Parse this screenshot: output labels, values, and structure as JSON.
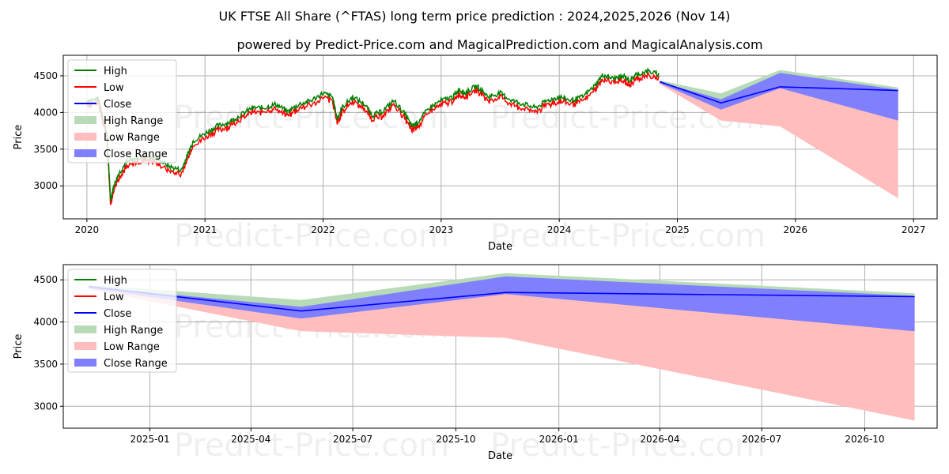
{
  "title": "UK FTSE All Share (^FTAS) long term price prediction : 2024,2025,2026 (Nov 14)",
  "subtitle": "powered by Predict-Price.com and MagicalPrediction.com and MagicalAnalysis.com",
  "watermark": "Predict-Price.com",
  "colors": {
    "high": "#008000",
    "low": "#ff0000",
    "close": "#0000ff",
    "high_range": "#b6dbb6",
    "low_range": "#ffbdbd",
    "close_range": "#8080ff",
    "grid": "#b0b0b0"
  },
  "legend": [
    "High",
    "Low",
    "Close",
    "High Range",
    "Low Range",
    "Close Range"
  ],
  "chart_data": [
    {
      "type": "line",
      "title": "Historical and predicted prices",
      "xlabel": "Date",
      "ylabel": "Price",
      "xlim": [
        2019.8,
        2027.2
      ],
      "ylim": [
        2550,
        4780
      ],
      "xticks": [
        2020,
        2021,
        2022,
        2023,
        2024,
        2025,
        2026,
        2027
      ],
      "xtick_labels": [
        "2020",
        "2021",
        "2022",
        "2023",
        "2024",
        "2025",
        "2026",
        "2027"
      ],
      "yticks": [
        3000,
        3500,
        4000,
        4500
      ],
      "grid": true,
      "legend_position": "top-left",
      "history": {
        "x": [
          2020.0,
          2020.1,
          2020.17,
          2020.2,
          2020.23,
          2020.27,
          2020.33,
          2020.4,
          2020.5,
          2020.6,
          2020.7,
          2020.8,
          2020.85,
          2020.9,
          2021.0,
          2021.1,
          2021.2,
          2021.3,
          2021.4,
          2021.5,
          2021.6,
          2021.7,
          2021.8,
          2021.9,
          2022.0,
          2022.08,
          2022.12,
          2022.16,
          2022.25,
          2022.35,
          2022.42,
          2022.5,
          2022.6,
          2022.7,
          2022.75,
          2022.8,
          2022.9,
          2023.0,
          2023.1,
          2023.15,
          2023.2,
          2023.3,
          2023.4,
          2023.5,
          2023.6,
          2023.7,
          2023.8,
          2023.9,
          2024.0,
          2024.1,
          2024.2,
          2024.3,
          2024.37,
          2024.45,
          2024.55,
          2024.6,
          2024.65,
          2024.75,
          2024.85
        ],
        "close": [
          4150,
          4170,
          3700,
          2800,
          3000,
          3150,
          3300,
          3350,
          3400,
          3350,
          3250,
          3200,
          3400,
          3600,
          3700,
          3800,
          3850,
          3950,
          4050,
          4050,
          4100,
          4000,
          4100,
          4150,
          4250,
          4200,
          3900,
          4050,
          4200,
          4100,
          3950,
          4000,
          4150,
          3950,
          3800,
          3850,
          4050,
          4150,
          4200,
          4300,
          4250,
          4350,
          4200,
          4250,
          4150,
          4100,
          4050,
          4150,
          4200,
          4150,
          4200,
          4350,
          4500,
          4450,
          4480,
          4420,
          4500,
          4550,
          4500
        ],
        "spread": 45
      },
      "forecast": {
        "x": [
          2024.85,
          2025.37,
          2025.87,
          2026.87
        ],
        "close": [
          4420,
          4130,
          4350,
          4300
        ],
        "high": [
          4440,
          4260,
          4580,
          4340
        ],
        "low": [
          4390,
          3890,
          3810,
          2830
        ],
        "close_upper": [
          4420,
          4180,
          4540,
          4310
        ],
        "close_lower": [
          4400,
          4040,
          4330,
          3890
        ]
      }
    },
    {
      "type": "area",
      "title": "Forecast detail",
      "xlabel": "Date",
      "ylabel": "Price",
      "xlim": [
        2024.788,
        2026.925
      ],
      "ylim": [
        2740,
        4680
      ],
      "xticks": [
        2025.0,
        2025.247,
        2025.496,
        2025.748,
        2026.0,
        2026.247,
        2026.496,
        2026.748
      ],
      "xtick_labels": [
        "2025-01",
        "2025-04",
        "2025-07",
        "2025-10",
        "2026-01",
        "2026-04",
        "2026-07",
        "2026-10"
      ],
      "yticks": [
        3000,
        3500,
        4000,
        4500
      ],
      "grid": true,
      "legend_position": "top-left",
      "forecast": {
        "x": [
          2024.85,
          2025.37,
          2025.87,
          2026.87
        ],
        "close": [
          4420,
          4130,
          4350,
          4300
        ],
        "high": [
          4440,
          4260,
          4580,
          4340
        ],
        "low": [
          4390,
          3890,
          3810,
          2830
        ],
        "close_upper": [
          4420,
          4180,
          4540,
          4310
        ],
        "close_lower": [
          4400,
          4040,
          4330,
          3890
        ]
      }
    }
  ]
}
